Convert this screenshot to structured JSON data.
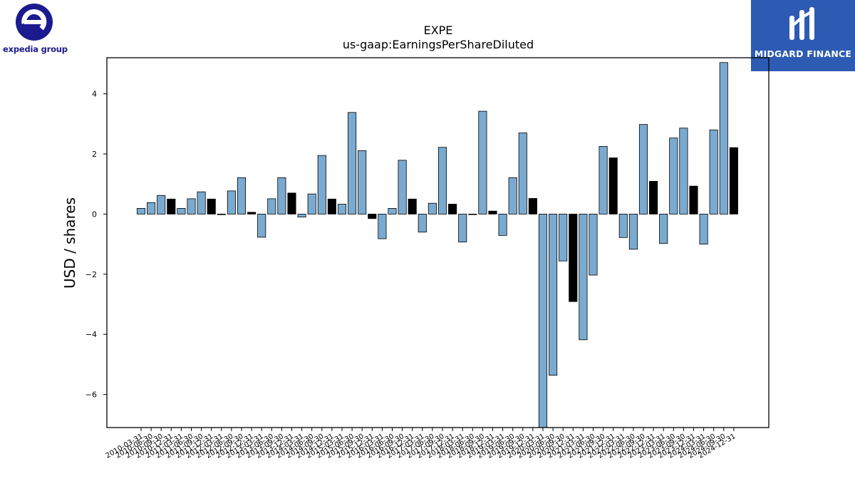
{
  "logos": {
    "left_brand_text": "expedia group",
    "right_brand_text": "MIDGARD FINANCE"
  },
  "colors": {
    "bar_light": "#7aaad0",
    "bar_dark": "#000000",
    "expedia_blue": "#1b1b8f",
    "midgard_blue": "#2d5ab3"
  },
  "chart_data": {
    "type": "bar",
    "title": "EXPE",
    "subtitle": "us-gaap:EarningsPerShareDiluted",
    "ylabel": "USD / shares",
    "xlabel": "",
    "ylim": [
      -7.1,
      5.2
    ],
    "yticks": [
      4,
      2,
      0,
      -2,
      -4,
      -6
    ],
    "ytick_labels": [
      "4",
      "2",
      "0",
      "−2",
      "−4",
      "−6"
    ],
    "grid": false,
    "categories": [
      "2010-03-31",
      "2010-06-30",
      "2010-09-30",
      "2010-12-31",
      "2011-03-31",
      "2011-06-30",
      "2011-09-30",
      "2011-12-31",
      "2012-03-31",
      "2012-06-30",
      "2012-09-30",
      "2012-12-31",
      "2013-03-31",
      "2013-06-30",
      "2013-09-30",
      "2013-12-31",
      "2014-03-31",
      "2014-06-30",
      "2014-09-30",
      "2014-12-31",
      "2015-03-31",
      "2015-06-30",
      "2015-09-30",
      "2015-12-31",
      "2016-03-31",
      "2016-06-30",
      "2016-09-30",
      "2016-12-31",
      "2017-03-31",
      "2017-06-30",
      "2017-09-30",
      "2017-12-31",
      "2018-03-31",
      "2018-06-30",
      "2018-09-30",
      "2018-12-31",
      "2019-03-31",
      "2019-06-30",
      "2019-09-30",
      "2019-12-31",
      "2020-03-31",
      "2020-06-30",
      "2020-09-30",
      "2020-12-31",
      "2021-03-31",
      "2021-06-30",
      "2021-09-30",
      "2021-12-31",
      "2022-03-31",
      "2022-06-30",
      "2022-09-30",
      "2022-12-31",
      "2023-03-31",
      "2023-06-30",
      "2023-09-30",
      "2023-12-31",
      "2024-03-31",
      "2024-06-30",
      "2024-09-30",
      "2024-12-31"
    ],
    "values": [
      0.19,
      0.38,
      0.62,
      0.5,
      0.19,
      0.51,
      0.74,
      0.5,
      -0.02,
      0.77,
      1.21,
      0.06,
      -0.77,
      0.51,
      1.21,
      0.7,
      -0.1,
      0.67,
      1.95,
      0.5,
      0.33,
      3.38,
      2.11,
      -0.15,
      -0.82,
      0.19,
      1.79,
      0.5,
      -0.6,
      0.36,
      2.22,
      0.33,
      -0.93,
      0.0,
      3.42,
      0.1,
      -0.71,
      1.21,
      2.7,
      0.52,
      -7.1,
      -5.36,
      -1.56,
      -2.91,
      -4.18,
      -2.03,
      2.25,
      1.87,
      -0.78,
      -1.17,
      2.98,
      1.09,
      -0.98,
      2.53,
      2.86,
      0.93,
      -1.0,
      2.8,
      5.04,
      2.21
    ],
    "bar_kind": [
      "light",
      "light",
      "light",
      "dark",
      "light",
      "light",
      "light",
      "dark",
      "dark",
      "light",
      "light",
      "dark",
      "light",
      "light",
      "light",
      "dark",
      "light",
      "light",
      "light",
      "dark",
      "light",
      "light",
      "light",
      "dark",
      "light",
      "light",
      "light",
      "dark",
      "light",
      "light",
      "light",
      "dark",
      "light",
      "dark",
      "light",
      "dark",
      "light",
      "light",
      "light",
      "dark",
      "light",
      "light",
      "light",
      "dark",
      "light",
      "light",
      "light",
      "dark",
      "light",
      "light",
      "light",
      "dark",
      "light",
      "light",
      "light",
      "dark",
      "light",
      "light",
      "light",
      "dark"
    ]
  }
}
